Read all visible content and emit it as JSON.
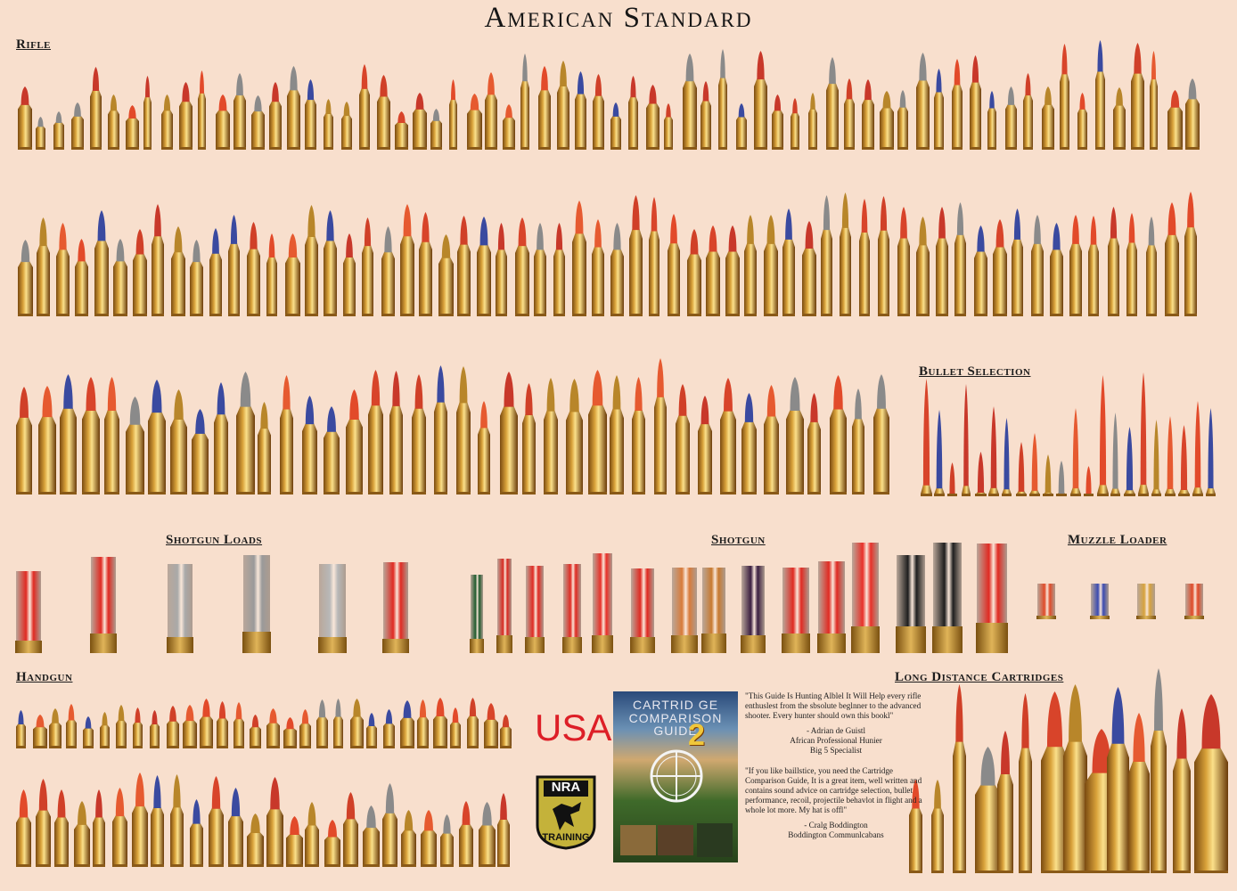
{
  "title": "American Standard",
  "sections": {
    "rifle": "Rifle",
    "bullet_selection": "Bullet Selection",
    "shotgun_loads": "Shotgun Loads",
    "shotgun": "Shotgun",
    "muzzle_loader": "Muzzle Loader",
    "handgun": "Handgun",
    "long_distance": "Long Distance Cartridges"
  },
  "badges": {
    "usa": "USA",
    "nra_top": "NRA",
    "nra_bottom": "TRAINING"
  },
  "cover": {
    "line1": "CARTRID GE",
    "line2": "COMPARISON",
    "line3": "GUIDE",
    "edition": "2"
  },
  "quotes": [
    {
      "text": "\"This Guide Is Hunting Alblel It Will Help every rifle enthuslest from the sbsolute beglnner to the advanced shooter. Every hunter should own this bookl\"",
      "author": "- Adrian de Guistl",
      "line2": "African Professional Hunier",
      "line3": "Big 5 Specialist"
    },
    {
      "text": "\"If you like baillstice, you need the Cartridge Comparison Guide, It is a great item, well written and contains sound advice on cartridge selection, bullet performance, recoil, projectile behavlot in flight and a whole lot more. My hat is offl\"",
      "author": "- Cralg Boddington",
      "line2": "Boddington Communlcabans",
      "line3": ""
    }
  ],
  "colors": {
    "background": "#f8dfcd",
    "brass": "#d8a33d",
    "tip_red": "#e2462a",
    "usa_red": "#dd1f27"
  }
}
